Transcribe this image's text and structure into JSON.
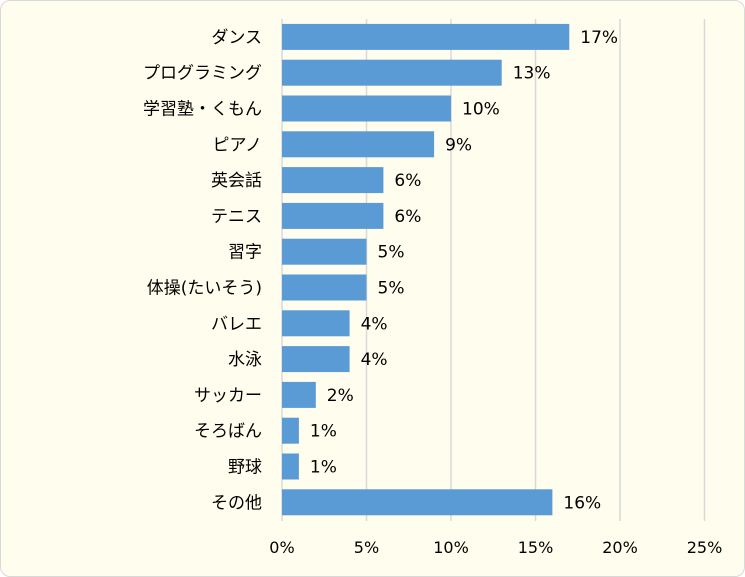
{
  "chart_data": {
    "type": "bar",
    "orientation": "horizontal",
    "title": "",
    "xlabel": "",
    "ylabel": "",
    "categories": [
      "ダンス",
      "プログラミング",
      "学習塾・くもん",
      "ピアノ",
      "英会話",
      "テニス",
      "習字",
      "体操(たいそう)",
      "バレエ",
      "水泳",
      "サッカー",
      "そろばん",
      "野球",
      "その他"
    ],
    "values": [
      17,
      13,
      10,
      9,
      6,
      6,
      5,
      5,
      4,
      4,
      2,
      1,
      1,
      16
    ],
    "value_labels": [
      "17%",
      "13%",
      "10%",
      "9%",
      "6%",
      "6%",
      "5%",
      "5%",
      "4%",
      "4%",
      "2%",
      "1%",
      "1%",
      "16%"
    ],
    "xlim": [
      0,
      25
    ],
    "x_ticks": [
      0,
      5,
      10,
      15,
      20,
      25
    ],
    "x_tick_labels": [
      "0%",
      "5%",
      "10%",
      "15%",
      "20%",
      "25%"
    ],
    "grid": "vertical",
    "legend": "none",
    "colors": {
      "bar": "#5b9bd5",
      "gridline": "#d9d9d9",
      "background": "#fffdee",
      "text": "#000000"
    }
  }
}
